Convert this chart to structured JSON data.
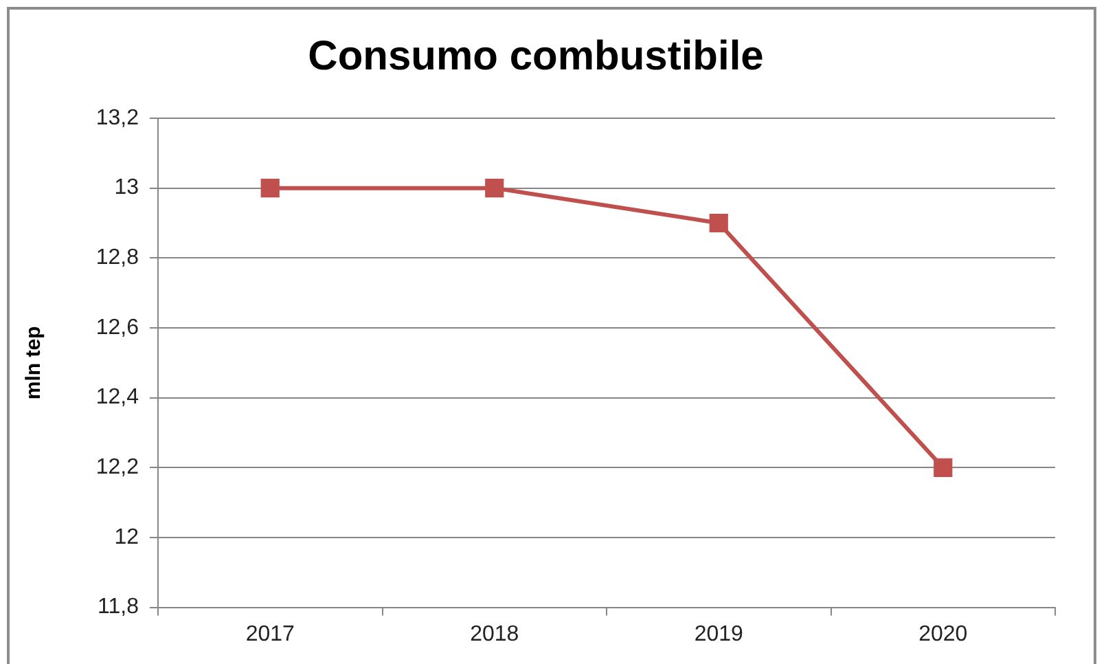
{
  "chart_data": {
    "type": "line",
    "title": "Consumo combustibile",
    "ylabel": "mln tep",
    "categories": [
      "2017",
      "2018",
      "2019",
      "2020"
    ],
    "series": [
      {
        "color": "#c0504d",
        "values": [
          13,
          13,
          12.9,
          12.2
        ]
      }
    ],
    "ylim": [
      11.8,
      13.2
    ],
    "yticks": [
      {
        "value": 11.8,
        "label": "11,8"
      },
      12,
      {
        "value": 12.2,
        "label": "12,2"
      },
      {
        "value": 12.4,
        "label": "12,4"
      },
      {
        "value": 12.6,
        "label": "12,6"
      },
      {
        "value": 12.8,
        "label": "12,8"
      },
      13,
      {
        "value": 13.2,
        "label": "13,2"
      }
    ],
    "grid": "y",
    "marker": "square",
    "line_style": "solid"
  }
}
